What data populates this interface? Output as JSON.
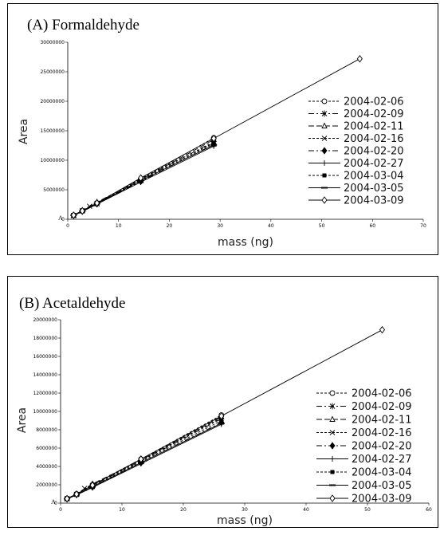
{
  "chart_data": [
    {
      "type": "line",
      "title": "(A)  Formaldehyde",
      "xlabel": "mass (ng)",
      "ylabel": "Area",
      "xlim": [
        0,
        70
      ],
      "ylim": [
        0,
        30000000
      ],
      "xticks": [
        "0",
        "10",
        "20",
        "30",
        "40",
        "50",
        "60",
        "70"
      ],
      "yticks": [
        "0",
        "5000000",
        "10000000",
        "15000000",
        "20000000",
        "25000000",
        "30000000"
      ],
      "origin_label": "A",
      "legend_position": "right",
      "grid": false,
      "series": [
        {
          "name": "2004-02-06",
          "dash": "3,2",
          "marker": "circle",
          "x": [
            1.15,
            2.87,
            5.75,
            14.37,
            28.75
          ],
          "y": [
            700000,
            1450000,
            2750000,
            6800000,
            13800000
          ]
        },
        {
          "name": "2004-02-09",
          "dash": "7,3,2,3",
          "marker": "star",
          "x": [
            1.15,
            2.87,
            5.75,
            14.37,
            28.75
          ],
          "y": [
            650000,
            1400000,
            2700000,
            6600000,
            13200000
          ]
        },
        {
          "name": "2004-02-11",
          "dash": "7,3",
          "marker": "triangle",
          "x": [
            1.15,
            2.87,
            5.75,
            14.37,
            28.75
          ],
          "y": [
            660000,
            1500000,
            2900000,
            6700000,
            13500000
          ]
        },
        {
          "name": "2004-02-16",
          "dash": "3,2",
          "marker": "cross",
          "x": [
            1.15,
            2.87,
            4.3,
            5.75,
            14.37,
            28.75
          ],
          "y": [
            600000,
            1450000,
            2200000,
            2600000,
            6500000,
            12900000
          ]
        },
        {
          "name": "2004-02-20",
          "dash": "7,3,2,3",
          "marker": "diamond-filled",
          "x": [
            1.15,
            2.87,
            5.75,
            14.37,
            28.75
          ],
          "y": [
            640000,
            1350000,
            2600000,
            6400000,
            12700000
          ]
        },
        {
          "name": "2004-02-27",
          "dash": "",
          "marker": "plus",
          "x": [
            1.15,
            2.87,
            5.75,
            14.37,
            28.75
          ],
          "y": [
            620000,
            1300000,
            2550000,
            6300000,
            12400000
          ]
        },
        {
          "name": "2004-03-04",
          "dash": "3,2",
          "marker": "square-filled",
          "x": [
            1.15,
            2.87,
            5.75,
            14.37,
            28.75
          ],
          "y": [
            680000,
            1420000,
            2800000,
            6900000,
            13000000
          ]
        },
        {
          "name": "2004-03-05",
          "dash": "",
          "marker": "dash",
          "x": [
            1.15,
            2.87,
            5.75,
            14.37,
            28.75
          ],
          "y": [
            670000,
            1380000,
            2650000,
            6550000,
            12600000
          ]
        },
        {
          "name": "2004-03-09",
          "dash": "",
          "marker": "diamond",
          "x": [
            1.15,
            2.87,
            5.75,
            14.37,
            28.75,
            57.5
          ],
          "y": [
            690000,
            1420000,
            2750000,
            7000000,
            13700000,
            27200000
          ]
        }
      ]
    },
    {
      "type": "line",
      "title": "(B)  Acetaldehyde",
      "xlabel": "mass (ng)",
      "ylabel": "Area",
      "xlim": [
        0,
        60
      ],
      "ylim": [
        0,
        20000000
      ],
      "xticks": [
        "0",
        "10",
        "20",
        "30",
        "40",
        "50",
        "60"
      ],
      "yticks": [
        "0",
        "2000000",
        "4000000",
        "6000000",
        "8000000",
        "10000000",
        "12000000",
        "14000000",
        "16000000",
        "18000000",
        "20000000"
      ],
      "origin_label": "A",
      "legend_position": "right",
      "grid": false,
      "series": [
        {
          "name": "2004-02-06",
          "dash": "3,2",
          "marker": "circle",
          "x": [
            1.05,
            2.6,
            5.2,
            13.1,
            26.2
          ],
          "y": [
            500000,
            1000000,
            2000000,
            4800000,
            9600000
          ]
        },
        {
          "name": "2004-02-09",
          "dash": "7,3,2,3",
          "marker": "star",
          "x": [
            1.05,
            2.6,
            5.2,
            13.1,
            26.2
          ],
          "y": [
            480000,
            950000,
            1900000,
            4600000,
            9200000
          ]
        },
        {
          "name": "2004-02-11",
          "dash": "7,3",
          "marker": "triangle",
          "x": [
            1.05,
            2.6,
            5.2,
            13.1,
            26.2
          ],
          "y": [
            490000,
            1000000,
            2100000,
            4700000,
            9400000
          ]
        },
        {
          "name": "2004-02-16",
          "dash": "3,2",
          "marker": "cross",
          "x": [
            1.05,
            2.6,
            3.9,
            5.2,
            13.1,
            26.2
          ],
          "y": [
            470000,
            950000,
            1600000,
            1800000,
            4500000,
            9000000
          ]
        },
        {
          "name": "2004-02-20",
          "dash": "7,3,2,3",
          "marker": "diamond-filled",
          "x": [
            1.05,
            2.6,
            5.2,
            13.1,
            26.2
          ],
          "y": [
            460000,
            920000,
            1750000,
            4400000,
            8800000
          ]
        },
        {
          "name": "2004-02-27",
          "dash": "",
          "marker": "plus",
          "x": [
            1.05,
            2.6,
            5.2,
            13.1,
            26.2
          ],
          "y": [
            450000,
            880000,
            1700000,
            4300000,
            8600000
          ]
        },
        {
          "name": "2004-03-04",
          "dash": "3,2",
          "marker": "square-filled",
          "x": [
            1.05,
            2.6,
            5.2,
            13.1,
            26.2
          ],
          "y": [
            480000,
            970000,
            1950000,
            4650000,
            9300000
          ]
        },
        {
          "name": "2004-03-05",
          "dash": "",
          "marker": "dash",
          "x": [
            1.05,
            2.6,
            5.2,
            13.1,
            26.2
          ],
          "y": [
            470000,
            900000,
            1800000,
            4400000,
            8700000
          ]
        },
        {
          "name": "2004-03-09",
          "dash": "",
          "marker": "diamond",
          "x": [
            1.05,
            2.6,
            5.2,
            13.1,
            26.2,
            52.4
          ],
          "y": [
            490000,
            980000,
            1950000,
            4800000,
            9500000,
            18900000
          ]
        }
      ]
    }
  ]
}
